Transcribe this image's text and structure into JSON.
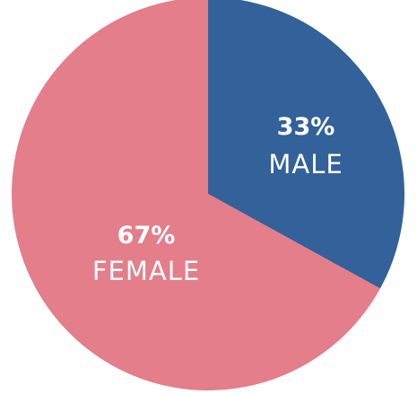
{
  "chart_data": {
    "type": "pie",
    "title": "",
    "start_angle_deg": 0,
    "direction": "clockwise",
    "slices": [
      {
        "label": "MALE",
        "percent_text": "33%",
        "value": 33,
        "color": "#336199"
      },
      {
        "label": "FEMALE",
        "percent_text": "67%",
        "value": 67,
        "color": "#E37E8A"
      }
    ]
  }
}
